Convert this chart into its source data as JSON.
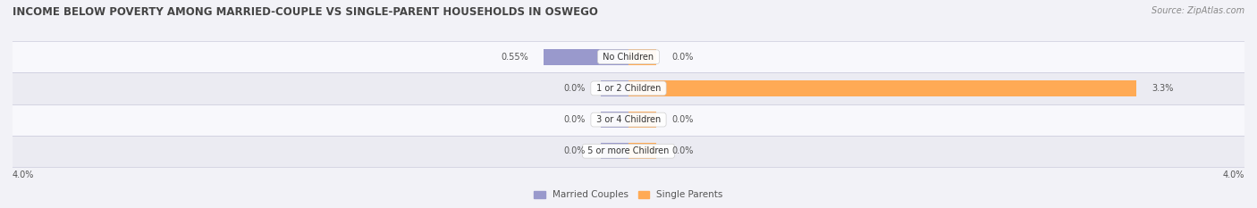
{
  "title": "INCOME BELOW POVERTY AMONG MARRIED-COUPLE VS SINGLE-PARENT HOUSEHOLDS IN OSWEGO",
  "source": "Source: ZipAtlas.com",
  "categories": [
    "No Children",
    "1 or 2 Children",
    "3 or 4 Children",
    "5 or more Children"
  ],
  "married_values": [
    0.55,
    0.0,
    0.0,
    0.0
  ],
  "single_values": [
    0.0,
    3.3,
    0.0,
    0.0
  ],
  "xlim": 4.0,
  "married_color": "#9999cc",
  "single_color": "#ffaa55",
  "bar_height": 0.52,
  "stub_size": 0.18,
  "background_color": "#f2f2f7",
  "row_color_light": "#f8f8fc",
  "row_color_dark": "#ebebf2",
  "label_color": "#555555",
  "title_fontsize": 8.5,
  "source_fontsize": 7,
  "category_fontsize": 7,
  "value_fontsize": 7,
  "legend_fontsize": 7.5
}
